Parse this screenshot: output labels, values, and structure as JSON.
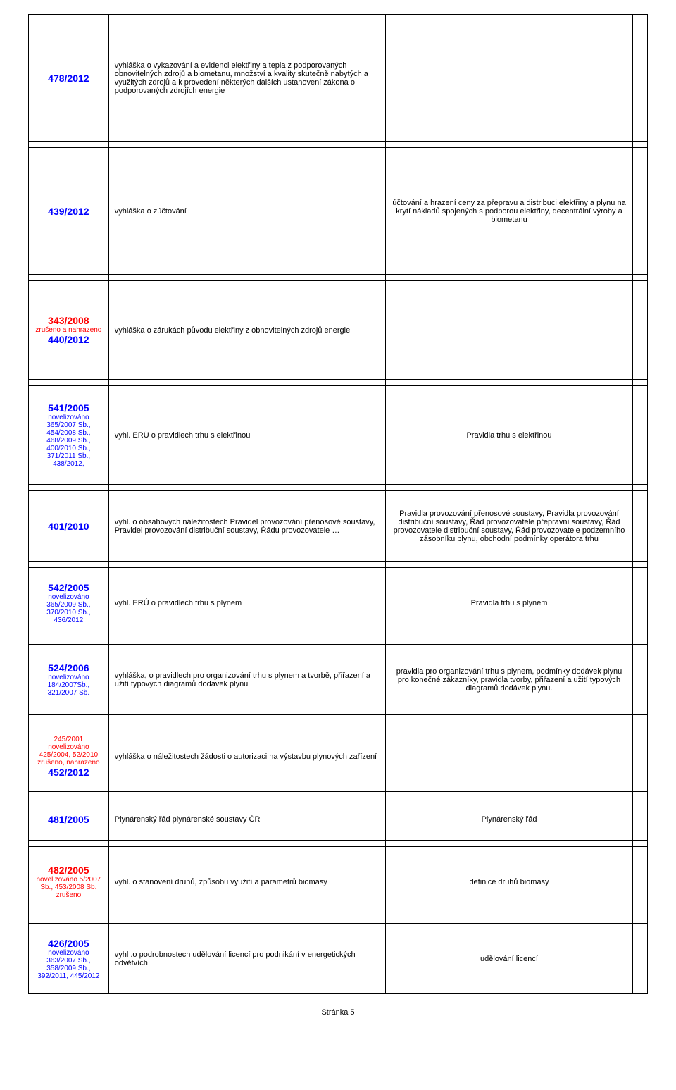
{
  "colors": {
    "blue": "#0000ff",
    "red": "#ff0000",
    "border": "#000000",
    "bg": "#ffffff",
    "text": "#000000"
  },
  "rows": [
    {
      "height": "tall",
      "col1": [
        {
          "text": "478/2012",
          "cls": "id-blue"
        }
      ],
      "col2": "vyhláška o vykazování a evidenci elektřiny a tepla z podporovaných obnovitelných zdrojů a biometanu, množství a kvality skutečně nabytých a využitých zdrojů a k provedení některých dalších ustanovení zákona o podporovaných zdrojích energie",
      "col3": ""
    },
    {
      "height": "tall",
      "col1": [
        {
          "text": "439/2012",
          "cls": "id-blue"
        }
      ],
      "col2": "vyhláška o zúčtování",
      "col3": "účtování a hrazení ceny za přepravu a distribuci elektřiny a plynu na krytí nákladů spojených s podporou elektřiny, decentrální výroby a biometanu"
    },
    {
      "height": "med",
      "col1": [
        {
          "text": "343/2008",
          "cls": "id-red"
        },
        {
          "text": "zrušeno a nahrazeno",
          "cls": "sub-red"
        },
        {
          "text": "440/2012",
          "cls": "id-blue"
        }
      ],
      "col2": "vyhláška o zárukách původu elektřiny z obnovitelných zdrojů energie",
      "col3": ""
    },
    {
      "height": "med",
      "col1": [
        {
          "text": "541/2005",
          "cls": "id-blue"
        },
        {
          "text": "novelizováno",
          "cls": "sub-blue"
        },
        {
          "text": "365/2007 Sb., 454/2008 Sb., 468/2009 Sb., 400/2010 Sb., 371/2011 Sb., 438/2012,",
          "cls": "sub-blue"
        }
      ],
      "col2": "vyhl. ERÚ o pravidlech trhu s elektřinou",
      "col3": "Pravidla trhu s elektřinou"
    },
    {
      "height": "short",
      "col1": [
        {
          "text": "401/2010",
          "cls": "id-blue"
        }
      ],
      "col2": "vyhl. o obsahových náležitostech Pravidel provozování přenosové soustavy, Pravidel provozování distribuční soustavy, Řádu provozovatele …",
      "col3": "Pravidla provozování přenosové soustavy, Pravidla provozování distribuční soustavy, Řád provozovatele přepravní soustavy, Řád provozovatele distribuční soustavy, Řád provozovatele podzemního zásobníku plynu, obchodní podmínky operátora trhu"
    },
    {
      "height": "short",
      "col1": [
        {
          "text": "542/2005",
          "cls": "id-blue"
        },
        {
          "text": "novelizováno",
          "cls": "sub-blue"
        },
        {
          "text": "365/2009 Sb., 370/2010 Sb., 436/2012",
          "cls": "sub-blue"
        }
      ],
      "col2": "vyhl. ERÚ o pravidlech trhu s plynem",
      "col3": "Pravidla trhu s plynem"
    },
    {
      "height": "short",
      "col1": [
        {
          "text": "524/2006",
          "cls": "id-blue"
        },
        {
          "text": "novelizováno",
          "cls": "sub-blue"
        },
        {
          "text": "184/2007Sb., 321/2007 Sb.",
          "cls": "sub-blue"
        }
      ],
      "col2": "vyhláška, o pravidlech pro organizování trhu s plynem a tvorbě, přiřazení a užití typových diagramů dodávek plynu",
      "col3": "pravidla pro organizování trhu s plynem, podmínky dodávek plynu pro konečné zákazníky, pravidla tvorby, přiřazení a užití typových diagramů dodávek plynu."
    },
    {
      "height": "short",
      "col1": [
        {
          "text": "245/2001",
          "cls": "sub-red"
        },
        {
          "text": "novelizováno",
          "cls": "sub-red"
        },
        {
          "text": "425/2004, 52/2010",
          "cls": "sub-red"
        },
        {
          "text": "zrušeno, nahrazeno",
          "cls": "sub-red"
        },
        {
          "text": "452/2012",
          "cls": "id-blue"
        }
      ],
      "col2": "vyhláška o náležitostech žádosti o autorizaci na výstavbu plynových zařízení",
      "col3": ""
    },
    {
      "height": "vshort",
      "col1": [
        {
          "text": "481/2005",
          "cls": "id-blue"
        }
      ],
      "col2": "Plynárenský řád  plynárenské soustavy ČR",
      "col3": "Plynárenský řád"
    },
    {
      "height": "short",
      "col1": [
        {
          "text": "482/2005",
          "cls": "id-red"
        },
        {
          "text": "novelizováno 5/2007 Sb., 453/2008 Sb.",
          "cls": "sub-red"
        },
        {
          "text": "zrušeno",
          "cls": "sub-red"
        }
      ],
      "col2": "vyhl. o stanovení druhů, způsobu využití a parametrů biomasy",
      "col3": "definice druhů biomasy"
    },
    {
      "height": "short",
      "col1": [
        {
          "text": "426/2005",
          "cls": "id-blue"
        },
        {
          "text": "novelizováno",
          "cls": "sub-blue"
        },
        {
          "text": "363/2007 Sb., 358/2009 Sb., 392/2011, 445/2012",
          "cls": "sub-blue"
        }
      ],
      "col2": "vyhl .o podrobnostech udělování licencí pro podnikání v energetických odvětvích",
      "col3": "udělování licencí"
    }
  ],
  "footer": "Stránka 5"
}
